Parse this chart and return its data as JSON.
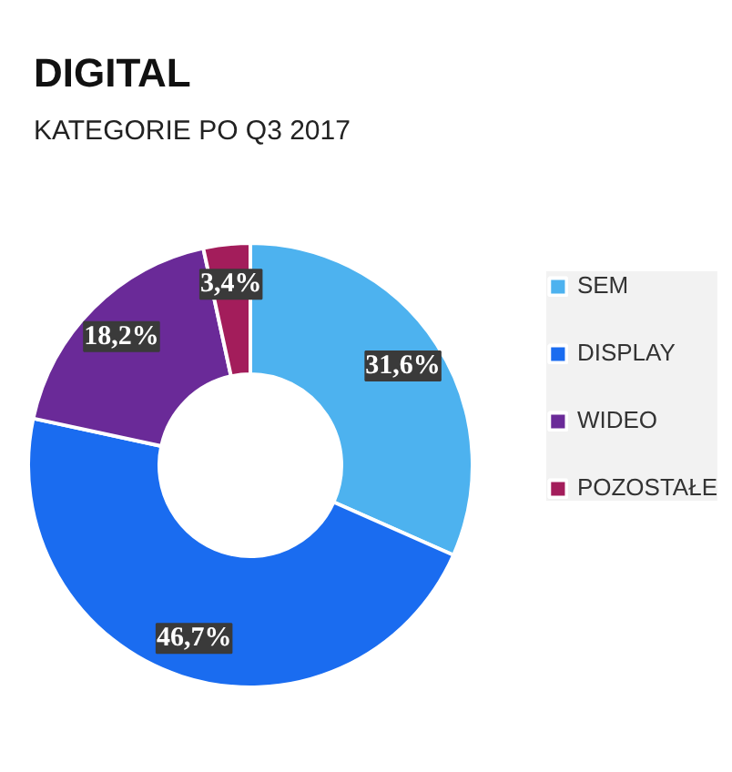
{
  "chart_data": {
    "type": "donut",
    "title": "DIGITAL",
    "subtitle": "KATEGORIE PO Q3 2017",
    "categories": [
      "SEM",
      "DISPLAY",
      "WIDEO",
      "POZOSTAŁE"
    ],
    "values": [
      31.6,
      46.7,
      18.2,
      3.4
    ],
    "colors": [
      "#4db2ef",
      "#1a6cf0",
      "#6a2a98",
      "#a31d5b"
    ],
    "value_labels": [
      "31,6%",
      "46,7%",
      "18,2%",
      "3,4%"
    ],
    "legend": "right"
  }
}
